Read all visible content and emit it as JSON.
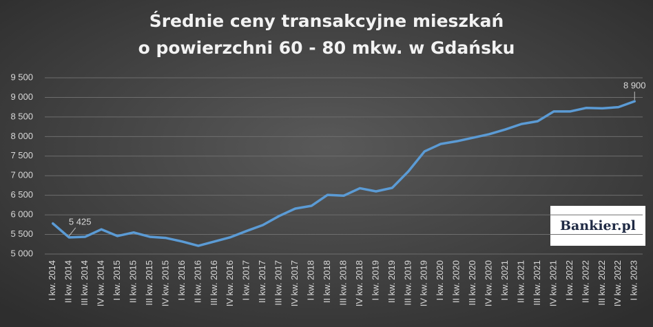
{
  "chart_data": {
    "type": "line",
    "title": "Średnie ceny transakcyjne mieszkań",
    "subtitle": "o powierzchni 60 - 80 mkw. w Gdańsku",
    "logo": "Bankier.pl",
    "categories": [
      "I kw. 2014",
      "II kw. 2014",
      "III kw. 2014",
      "IV kw. 2014",
      "I kw. 2015",
      "II kw. 2015",
      "III kw. 2015",
      "IV kw. 2015",
      "I kw. 2016",
      "II kw. 2016",
      "III kw. 2016",
      "IV kw. 2016",
      "I kw. 2017",
      "II kw. 2017",
      "III kw. 2017",
      "IV kw. 2017",
      "I kw. 2018",
      "II kw. 2018",
      "III kw. 2018",
      "IV kw. 2018",
      "I kw. 2019",
      "II kw. 2019",
      "III kw. 2019",
      "IV kw. 2019",
      "I kw. 2020",
      "II kw. 2020",
      "III kw. 2020",
      "IV kw. 2020",
      "I kw. 2021",
      "II kw. 2021",
      "III kw. 2021",
      "IV kw. 2021",
      "I kw. 2022",
      "II kw. 2022",
      "III kw. 2022",
      "IV kw. 2022",
      "I kw. 2023"
    ],
    "values": [
      5780,
      5425,
      5440,
      5630,
      5460,
      5550,
      5440,
      5410,
      5320,
      5210,
      5320,
      5430,
      5590,
      5740,
      5970,
      6160,
      6230,
      6510,
      6490,
      6680,
      6600,
      6690,
      7110,
      7620,
      7810,
      7880,
      7970,
      8060,
      8180,
      8320,
      8390,
      8640,
      8640,
      8730,
      8720,
      8750,
      8900
    ],
    "value_labels": [
      null,
      "5 425",
      null,
      null,
      null,
      null,
      null,
      null,
      null,
      null,
      null,
      null,
      null,
      null,
      null,
      null,
      null,
      null,
      null,
      null,
      null,
      null,
      null,
      null,
      null,
      null,
      null,
      null,
      null,
      null,
      null,
      null,
      null,
      null,
      null,
      null,
      "8 900"
    ],
    "color": "#5b9bd5",
    "ylim": [
      5000,
      9500
    ],
    "yticks": [
      {
        "value": 5000,
        "label": "5 000"
      },
      {
        "value": 5500,
        "label": "5 500"
      },
      {
        "value": 6000,
        "label": "6 000"
      },
      {
        "value": 6500,
        "label": "6 500"
      },
      {
        "value": 7000,
        "label": "7 000"
      },
      {
        "value": 7500,
        "label": "7 500"
      },
      {
        "value": 8000,
        "label": "8 000"
      },
      {
        "value": 8500,
        "label": "8 500"
      },
      {
        "value": 9000,
        "label": "9 000"
      },
      {
        "value": 9500,
        "label": "9 500"
      }
    ],
    "grid": true
  }
}
